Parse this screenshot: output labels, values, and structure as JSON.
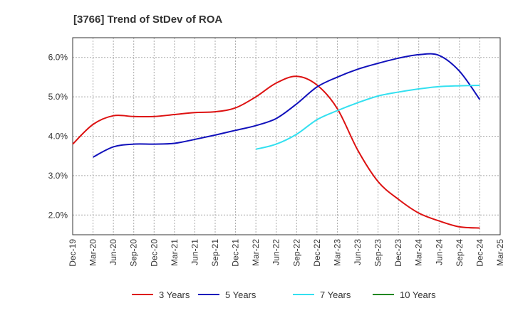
{
  "chart_data": {
    "type": "line",
    "title": "[3766]  Trend of StDev of ROA",
    "xlabel": "",
    "ylabel": "",
    "x_ticks": [
      "Dec-19",
      "Mar-20",
      "Jun-20",
      "Sep-20",
      "Dec-20",
      "Mar-21",
      "Jun-21",
      "Sep-21",
      "Dec-21",
      "Mar-22",
      "Jun-22",
      "Sep-22",
      "Dec-22",
      "Mar-23",
      "Jun-23",
      "Sep-23",
      "Dec-23",
      "Mar-24",
      "Jun-24",
      "Sep-24",
      "Dec-24",
      "Mar-25"
    ],
    "y_ticks": [
      "2.0%",
      "3.0%",
      "4.0%",
      "5.0%",
      "6.0%"
    ],
    "ylim": [
      1.5,
      6.5
    ],
    "grid": true,
    "legend_position": "bottom",
    "series": [
      {
        "name": "3 Years",
        "color": "#dd1111",
        "x": [
          "Dec-19",
          "Mar-20",
          "Jun-20",
          "Sep-20",
          "Dec-20",
          "Mar-21",
          "Jun-21",
          "Sep-21",
          "Dec-21",
          "Mar-22",
          "Jun-22",
          "Sep-22",
          "Dec-22",
          "Mar-23",
          "Jun-23",
          "Sep-23",
          "Dec-23",
          "Mar-24",
          "Jun-24",
          "Sep-24",
          "Dec-24"
        ],
        "values": [
          3.8,
          4.3,
          4.52,
          4.5,
          4.5,
          4.55,
          4.6,
          4.62,
          4.72,
          5.0,
          5.35,
          5.52,
          5.3,
          4.7,
          3.65,
          2.85,
          2.4,
          2.05,
          1.85,
          1.7,
          1.67
        ]
      },
      {
        "name": "5 Years",
        "color": "#1111bb",
        "x": [
          "Mar-20",
          "Jun-20",
          "Sep-20",
          "Dec-20",
          "Mar-21",
          "Jun-21",
          "Sep-21",
          "Dec-21",
          "Mar-22",
          "Jun-22",
          "Sep-22",
          "Dec-22",
          "Mar-23",
          "Jun-23",
          "Sep-23",
          "Dec-23",
          "Mar-24",
          "Jun-24",
          "Sep-24",
          "Dec-24"
        ],
        "values": [
          3.47,
          3.73,
          3.8,
          3.8,
          3.82,
          3.92,
          4.03,
          4.15,
          4.27,
          4.45,
          4.82,
          5.25,
          5.5,
          5.7,
          5.85,
          5.98,
          6.07,
          6.05,
          5.65,
          4.93
        ]
      },
      {
        "name": "7 Years",
        "color": "#33e0f0",
        "x": [
          "Mar-22",
          "Jun-22",
          "Sep-22",
          "Dec-22",
          "Mar-23",
          "Jun-23",
          "Sep-23",
          "Dec-23",
          "Mar-24",
          "Jun-24",
          "Sep-24",
          "Dec-24"
        ],
        "values": [
          3.67,
          3.8,
          4.05,
          4.42,
          4.65,
          4.85,
          5.02,
          5.12,
          5.2,
          5.26,
          5.28,
          5.29
        ]
      },
      {
        "name": "10 Years",
        "color": "#228822",
        "x": [],
        "values": []
      }
    ]
  }
}
